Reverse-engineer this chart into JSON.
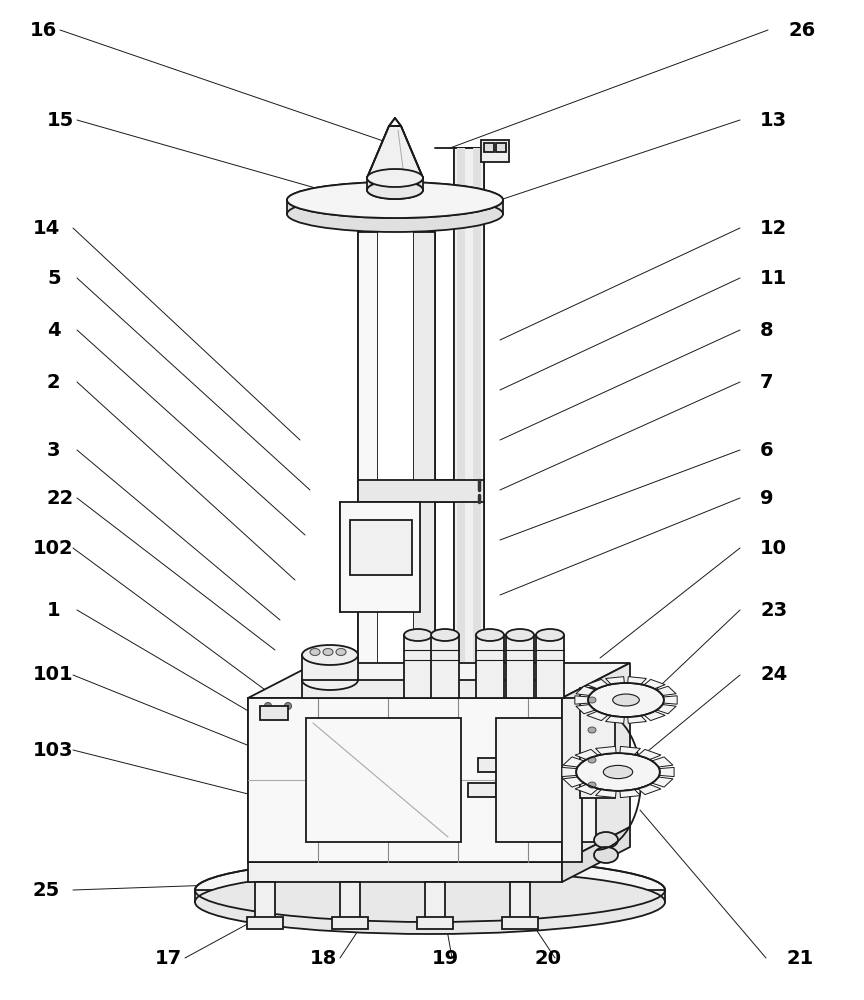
{
  "bg_color": "#ffffff",
  "lc": "#1a1a1a",
  "lw_main": 1.3,
  "lw_thin": 0.8,
  "lw_label": 0.7,
  "label_fs": 14,
  "label_color": "#000000",
  "fig_w": 8.64,
  "fig_h": 10.0,
  "labels_left": [
    [
      "16",
      30,
      30
    ],
    [
      "15",
      47,
      120
    ],
    [
      "14",
      33,
      228
    ],
    [
      "5",
      47,
      278
    ],
    [
      "4",
      47,
      330
    ],
    [
      "2",
      47,
      382
    ],
    [
      "3",
      47,
      450
    ],
    [
      "22",
      47,
      498
    ],
    [
      "102",
      33,
      548
    ],
    [
      "1",
      47,
      610
    ],
    [
      "101",
      33,
      675
    ],
    [
      "103",
      33,
      750
    ],
    [
      "25",
      33,
      890
    ]
  ],
  "labels_right": [
    [
      "26",
      788,
      30
    ],
    [
      "13",
      760,
      120
    ],
    [
      "12",
      760,
      228
    ],
    [
      "11",
      760,
      278
    ],
    [
      "8",
      760,
      330
    ],
    [
      "7",
      760,
      382
    ],
    [
      "6",
      760,
      450
    ],
    [
      "9",
      760,
      498
    ],
    [
      "10",
      760,
      548
    ],
    [
      "23",
      760,
      610
    ],
    [
      "24",
      760,
      675
    ]
  ],
  "labels_bottom": [
    [
      "17",
      155,
      958
    ],
    [
      "18",
      310,
      958
    ],
    [
      "19",
      432,
      958
    ],
    [
      "20",
      535,
      958
    ],
    [
      "21",
      786,
      958
    ]
  ]
}
